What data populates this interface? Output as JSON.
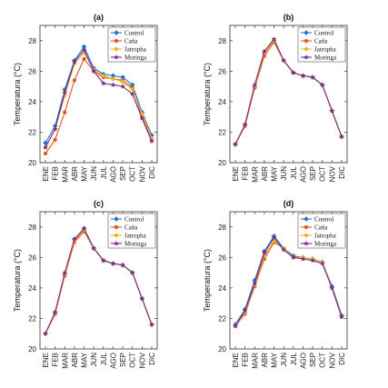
{
  "chart_data": [
    {
      "type": "line",
      "title": "(a)",
      "xlabel": "",
      "ylabel": "Temperatura (°C)",
      "categories": [
        "ENE",
        "FEB",
        "MAR",
        "ABR",
        "MAY",
        "JUN",
        "JUL",
        "AGO",
        "SEP",
        "OCT",
        "NOV",
        "DIC"
      ],
      "ylim": [
        20,
        29
      ],
      "yticks": [
        20,
        22,
        24,
        26,
        28
      ],
      "grid": false,
      "legend_position": "top-right",
      "series": [
        {
          "name": "Control",
          "color": "#1f77d4",
          "marker": "diamond",
          "values": [
            21.3,
            22.4,
            24.8,
            26.7,
            27.6,
            26.2,
            25.8,
            25.7,
            25.6,
            25.1,
            23.3,
            21.8
          ]
        },
        {
          "name": "Caña",
          "color": "#e8511f",
          "marker": "circle",
          "values": [
            20.6,
            21.5,
            23.3,
            25.4,
            26.8,
            26.0,
            25.6,
            25.5,
            25.4,
            24.9,
            23.0,
            21.5
          ]
        },
        {
          "name": "Jatropha",
          "color": "#f2b21c",
          "marker": "circle",
          "values": [
            21.0,
            22.2,
            24.4,
            26.5,
            27.2,
            26.1,
            25.7,
            25.5,
            25.3,
            24.8,
            23.2,
            21.6
          ]
        },
        {
          "name": "Moringa",
          "color": "#7a2a8c",
          "marker": "star",
          "values": [
            21.0,
            22.2,
            24.6,
            26.6,
            27.4,
            26.0,
            25.2,
            25.1,
            25.0,
            24.5,
            22.9,
            21.4
          ]
        }
      ]
    },
    {
      "type": "line",
      "title": "(b)",
      "xlabel": "",
      "ylabel": "Temperatura (°C)",
      "categories": [
        "ENE",
        "FEB",
        "MAR",
        "ABR",
        "MAY",
        "JUN",
        "JUL",
        "AGO",
        "SEP",
        "OCT",
        "NOV",
        "DIC"
      ],
      "ylim": [
        20,
        29
      ],
      "yticks": [
        20,
        22,
        24,
        26,
        28
      ],
      "grid": false,
      "legend_position": "top-right",
      "series": [
        {
          "name": "Control",
          "color": "#1f77d4",
          "marker": "diamond",
          "values": [
            21.2,
            22.5,
            25.0,
            27.2,
            28.0,
            26.7,
            25.9,
            25.7,
            25.6,
            25.1,
            23.4,
            21.7
          ]
        },
        {
          "name": "Caña",
          "color": "#e8511f",
          "marker": "circle",
          "values": [
            21.2,
            22.4,
            24.9,
            27.0,
            27.9,
            26.7,
            25.9,
            25.7,
            25.6,
            25.1,
            23.4,
            21.7
          ]
        },
        {
          "name": "Jatropha",
          "color": "#f2b21c",
          "marker": "circle",
          "values": [
            21.2,
            22.5,
            25.0,
            27.2,
            28.0,
            26.7,
            25.9,
            25.7,
            25.6,
            25.1,
            23.4,
            21.7
          ]
        },
        {
          "name": "Moringa",
          "color": "#7a2a8c",
          "marker": "star",
          "values": [
            21.2,
            22.5,
            25.1,
            27.3,
            28.1,
            26.7,
            25.9,
            25.7,
            25.6,
            25.1,
            23.4,
            21.7
          ]
        }
      ]
    },
    {
      "type": "line",
      "title": "(c)",
      "xlabel": "",
      "ylabel": "Temperatura (°C)",
      "categories": [
        "ENE",
        "FEB",
        "MAR",
        "ABR",
        "MAY",
        "JUN",
        "JUL",
        "AGO",
        "SEP",
        "OCT",
        "NOV",
        "DIC"
      ],
      "ylim": [
        20,
        29
      ],
      "yticks": [
        20,
        22,
        24,
        26,
        28
      ],
      "grid": false,
      "legend_position": "top-right",
      "series": [
        {
          "name": "Control",
          "color": "#1f77d4",
          "marker": "diamond",
          "values": [
            21.0,
            22.4,
            24.9,
            27.2,
            27.9,
            26.6,
            25.8,
            25.6,
            25.5,
            25.0,
            23.3,
            21.6
          ]
        },
        {
          "name": "Caña",
          "color": "#e8511f",
          "marker": "circle",
          "values": [
            21.0,
            22.3,
            24.8,
            27.0,
            27.7,
            26.6,
            25.8,
            25.6,
            25.5,
            25.0,
            23.3,
            21.6
          ]
        },
        {
          "name": "Jatropha",
          "color": "#f2b21c",
          "marker": "circle",
          "values": [
            21.0,
            22.4,
            24.9,
            27.1,
            27.8,
            26.6,
            25.8,
            25.6,
            25.5,
            25.0,
            23.3,
            21.6
          ]
        },
        {
          "name": "Moringa",
          "color": "#7a2a8c",
          "marker": "star",
          "values": [
            21.0,
            22.4,
            25.0,
            27.2,
            27.9,
            26.6,
            25.8,
            25.6,
            25.5,
            25.0,
            23.3,
            21.6
          ]
        }
      ]
    },
    {
      "type": "line",
      "title": "(d)",
      "xlabel": "",
      "ylabel": "Temperatura (°C)",
      "categories": [
        "ENE",
        "FEB",
        "MAR",
        "ABR",
        "MAY",
        "JUN",
        "JUL",
        "AGO",
        "SEP",
        "OCT",
        "NOV",
        "DIC"
      ],
      "ylim": [
        20,
        29
      ],
      "yticks": [
        20,
        22,
        24,
        26,
        28
      ],
      "grid": false,
      "legend_position": "top-right",
      "series": [
        {
          "name": "Control",
          "color": "#1f77d4",
          "marker": "diamond",
          "values": [
            21.6,
            22.6,
            24.5,
            26.4,
            27.4,
            26.6,
            26.1,
            26.0,
            25.9,
            25.7,
            24.1,
            22.2
          ]
        },
        {
          "name": "Caña",
          "color": "#e8511f",
          "marker": "circle",
          "values": [
            21.5,
            22.3,
            24.1,
            25.9,
            27.0,
            26.6,
            26.0,
            26.0,
            25.9,
            25.7,
            24.0,
            22.1
          ]
        },
        {
          "name": "Jatropha",
          "color": "#f2b21c",
          "marker": "circle",
          "values": [
            21.5,
            22.4,
            24.2,
            26.1,
            27.1,
            26.6,
            26.0,
            26.0,
            25.9,
            25.7,
            24.0,
            22.1
          ]
        },
        {
          "name": "Moringa",
          "color": "#7a2a8c",
          "marker": "star",
          "values": [
            21.5,
            22.5,
            24.3,
            26.3,
            27.3,
            26.5,
            26.0,
            25.9,
            25.8,
            25.6,
            24.0,
            22.1
          ]
        }
      ]
    }
  ]
}
